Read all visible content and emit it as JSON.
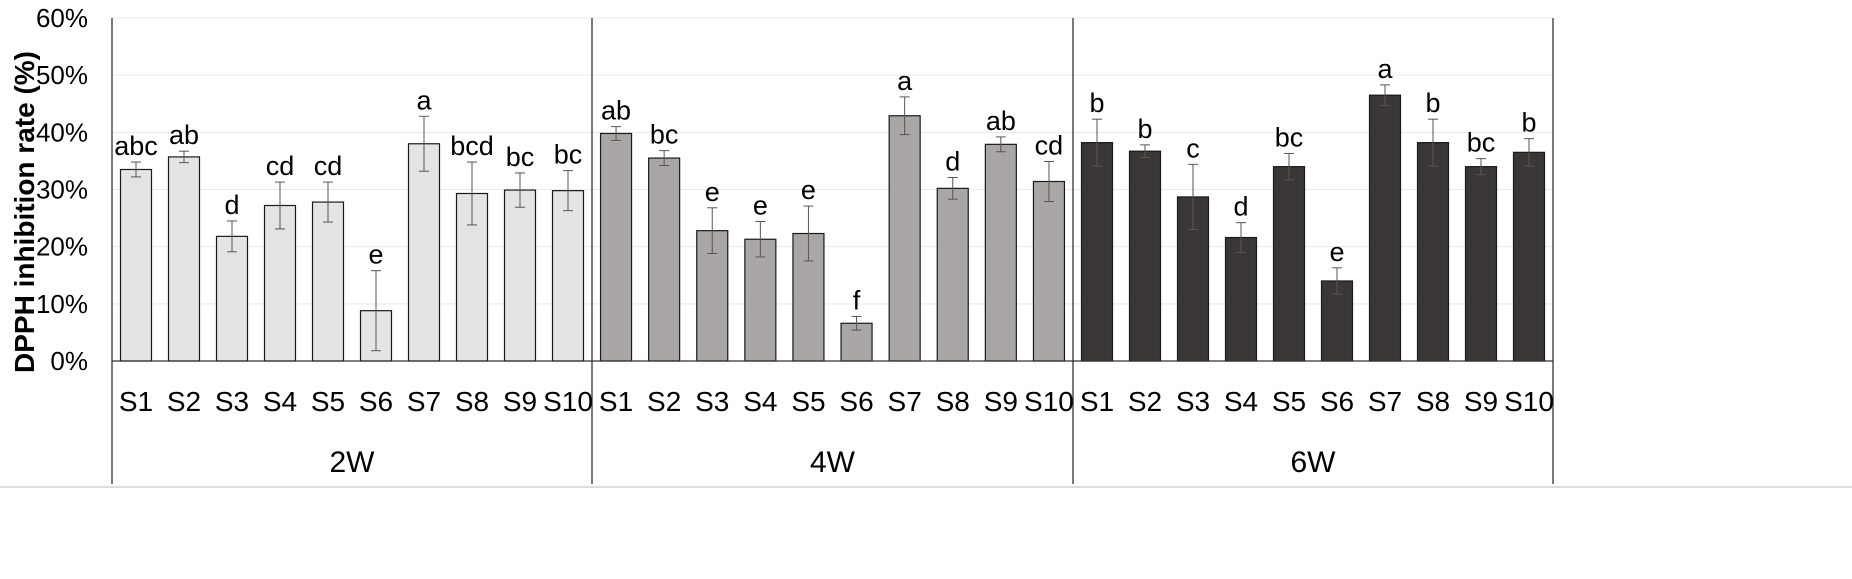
{
  "chart_data": {
    "type": "bar",
    "title": "",
    "ylabel": "DPPH inhibition rate (%)",
    "xlabel": "",
    "ylim": [
      0,
      60
    ],
    "yticks": [
      "0%",
      "10%",
      "20%",
      "30%",
      "40%",
      "50%",
      "60%"
    ],
    "grid": true,
    "legend": "none",
    "groups": [
      {
        "name": "2W",
        "color": "#e4e4e4",
        "categories": [
          "S1",
          "S2",
          "S3",
          "S4",
          "S5",
          "S6",
          "S7",
          "S8",
          "S9",
          "S10"
        ],
        "values": [
          33.5,
          35.7,
          21.8,
          27.2,
          27.8,
          8.8,
          38.0,
          29.3,
          29.9,
          29.8
        ],
        "errors": [
          1.3,
          1.0,
          2.7,
          4.1,
          3.5,
          7.0,
          4.8,
          5.5,
          3.0,
          3.5
        ],
        "labels": [
          "abc",
          "ab",
          "d",
          "cd",
          "cd",
          "e",
          "a",
          "bcd",
          "bc",
          "bc"
        ]
      },
      {
        "name": "4W",
        "color": "#aaa6a5",
        "categories": [
          "S1",
          "S2",
          "S3",
          "S4",
          "S5",
          "S6",
          "S7",
          "S8",
          "S9",
          "S10"
        ],
        "values": [
          39.8,
          35.5,
          22.8,
          21.3,
          22.3,
          6.6,
          42.9,
          30.2,
          37.9,
          31.4
        ],
        "errors": [
          1.2,
          1.3,
          4.0,
          3.1,
          4.8,
          1.2,
          3.3,
          1.9,
          1.3,
          3.5
        ],
        "labels": [
          "ab",
          "bc",
          "e",
          "e",
          "e",
          "f",
          "a",
          "d",
          "ab",
          "cd"
        ]
      },
      {
        "name": "6W",
        "color": "#3a3736",
        "categories": [
          "S1",
          "S2",
          "S3",
          "S4",
          "S5",
          "S6",
          "S7",
          "S8",
          "S9",
          "S10"
        ],
        "values": [
          38.2,
          36.7,
          28.7,
          21.6,
          34.0,
          14.0,
          46.5,
          38.2,
          34.0,
          36.5
        ],
        "errors": [
          4.1,
          1.1,
          5.7,
          2.6,
          2.3,
          2.3,
          1.8,
          4.1,
          1.4,
          2.4
        ],
        "labels": [
          "b",
          "b",
          "c",
          "d",
          "bc",
          "e",
          "a",
          "b",
          "bc",
          "b"
        ]
      }
    ]
  }
}
